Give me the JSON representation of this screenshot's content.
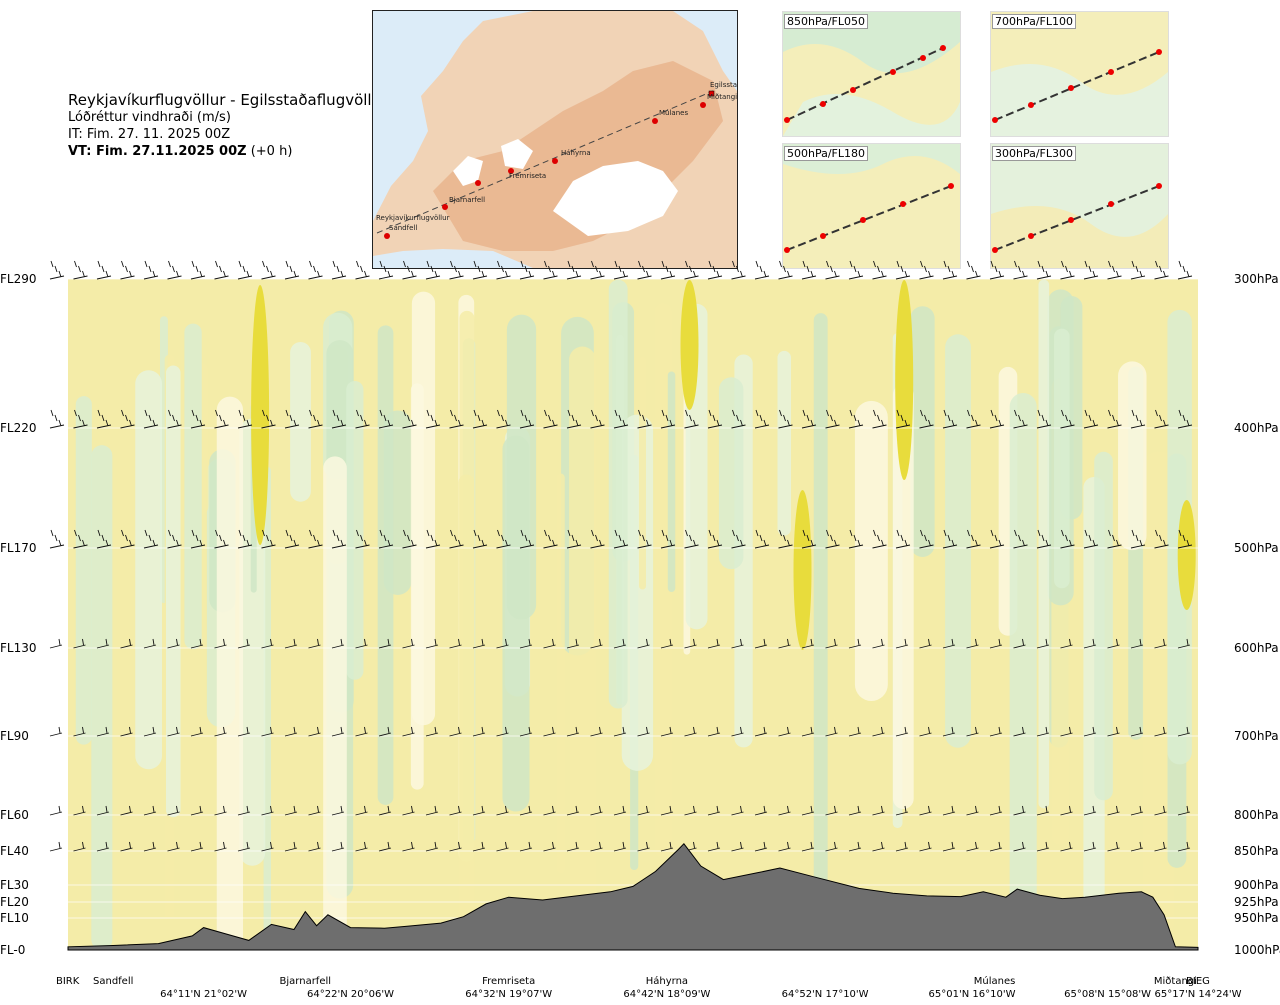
{
  "title": {
    "route": "Reykjavíkurflugvöllur - Egilsstaðaflugvöllur",
    "variable": "Lóðréttur vindhraði (m/s)",
    "initial_time": "IT: Fim. 27. 11. 2025 00Z",
    "valid_time": "VT: Fim. 27.11.2025 00Z",
    "lead": "(+0 h)"
  },
  "route_map": {
    "waypoints": [
      "Reykjavíkurflugvöllur",
      "Sandfell",
      "Bjarnarfell",
      "Fremriseta",
      "Háhyrna",
      "Múlanes",
      "Egilsstaðir",
      "Miðtangi"
    ]
  },
  "level_maps": [
    {
      "label": "850hPa/FL050"
    },
    {
      "label": "700hPa/FL100"
    },
    {
      "label": "500hPa/FL180"
    },
    {
      "label": "300hPa/FL300"
    }
  ],
  "chart_data": {
    "type": "heatmap",
    "title": "Reykjavíkurflugvöllur - Egilsstaðaflugvöllur",
    "variable": "Lóðréttur vindhraði (m/s)",
    "flight_levels": [
      {
        "fl": "FL290",
        "hpa": "300hPa",
        "pressure": 300
      },
      {
        "fl": "FL220",
        "hpa": "400hPa",
        "pressure": 400
      },
      {
        "fl": "FL170",
        "hpa": "500hPa",
        "pressure": 500
      },
      {
        "fl": "FL130",
        "hpa": "600hPa",
        "pressure": 600
      },
      {
        "fl": "FL90",
        "hpa": "700hPa",
        "pressure": 700
      },
      {
        "fl": "FL60",
        "hpa": "800hPa",
        "pressure": 800
      },
      {
        "fl": "FL40",
        "hpa": "850hPa",
        "pressure": 850
      },
      {
        "fl": "FL30",
        "hpa": "900hPa",
        "pressure": 900
      },
      {
        "fl": "FL20",
        "hpa": "925hPa",
        "pressure": 925
      },
      {
        "fl": "FL10",
        "hpa": "950hPa",
        "pressure": 950
      },
      {
        "fl": "FL-0",
        "hpa": "1000hPa",
        "pressure": 1000
      }
    ],
    "x_waypoints": [
      "BIRK",
      "Sandfell",
      "Bjarnarfell",
      "Fremriseta",
      "Háhyrna",
      "Múlanes",
      "Miðtangi",
      "BIEG"
    ],
    "x_waypoint_positions": [
      0.0,
      0.04,
      0.21,
      0.39,
      0.53,
      0.82,
      0.98,
      1.0
    ],
    "x_coordinates": [
      "64°11'N 21°02'W",
      "64°22'N 20°06'W",
      "64°32'N 19°07'W",
      "64°42'N 18°09'W",
      "64°52'N 17°10'W",
      "65°01'N 16°10'W",
      "65°08'N 15°08'W",
      "65°17'N 14°24'W"
    ],
    "x_coordinate_positions": [
      0.12,
      0.25,
      0.39,
      0.53,
      0.67,
      0.8,
      0.92,
      1.0
    ],
    "terrain_pressure": [
      [
        0.0,
        995
      ],
      [
        0.04,
        993
      ],
      [
        0.08,
        990
      ],
      [
        0.11,
        978
      ],
      [
        0.12,
        965
      ],
      [
        0.14,
        975
      ],
      [
        0.16,
        985
      ],
      [
        0.18,
        960
      ],
      [
        0.2,
        968
      ],
      [
        0.21,
        940
      ],
      [
        0.22,
        962
      ],
      [
        0.23,
        945
      ],
      [
        0.25,
        965
      ],
      [
        0.28,
        966
      ],
      [
        0.3,
        963
      ],
      [
        0.33,
        958
      ],
      [
        0.35,
        948
      ],
      [
        0.37,
        928
      ],
      [
        0.39,
        918
      ],
      [
        0.42,
        922
      ],
      [
        0.45,
        916
      ],
      [
        0.48,
        910
      ],
      [
        0.5,
        902
      ],
      [
        0.52,
        880
      ],
      [
        0.54,
        848
      ],
      [
        0.545,
        840
      ],
      [
        0.56,
        872
      ],
      [
        0.58,
        892
      ],
      [
        0.61,
        882
      ],
      [
        0.63,
        875
      ],
      [
        0.66,
        888
      ],
      [
        0.7,
        905
      ],
      [
        0.73,
        912
      ],
      [
        0.76,
        916
      ],
      [
        0.79,
        917
      ],
      [
        0.81,
        910
      ],
      [
        0.83,
        918
      ],
      [
        0.84,
        906
      ],
      [
        0.86,
        915
      ],
      [
        0.88,
        920
      ],
      [
        0.9,
        918
      ],
      [
        0.93,
        912
      ],
      [
        0.95,
        910
      ],
      [
        0.96,
        918
      ],
      [
        0.97,
        945
      ],
      [
        0.98,
        995
      ],
      [
        1.0,
        996
      ]
    ],
    "legend": []
  }
}
